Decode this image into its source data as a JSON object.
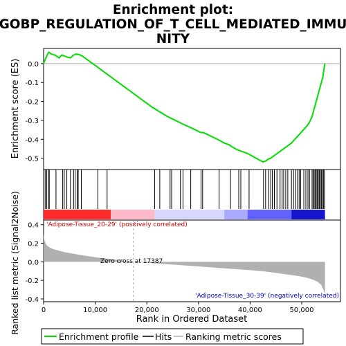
{
  "chart_data": {
    "type": "line",
    "title_lines": [
      "Enrichment plot:",
      "GOBP_REGULATION_OF_T_CELL_MEDIATED_IMMU",
      "NITY"
    ],
    "top_panel": {
      "ylabel": "Enrichment score (ES)",
      "ylim": [
        -0.56,
        0.08
      ],
      "yticks": [
        0.0,
        -0.1,
        -0.2,
        -0.3,
        -0.4,
        -0.5
      ],
      "ytick_labels": [
        "0.0",
        "-0.1",
        "-0.2",
        "-0.3",
        "-0.4",
        "-0.5"
      ],
      "series": [
        {
          "name": "Enrichment profile",
          "color": "#00dd00",
          "x": [
            0,
            300,
            600,
            1000,
            1500,
            2200,
            3000,
            3500,
            4000,
            4500,
            5200,
            5800,
            6300,
            6800,
            7500,
            8500,
            10000,
            12000,
            15000,
            18000,
            21000,
            24000,
            27000,
            29000,
            30500,
            31000,
            32500,
            34000,
            35000,
            36000,
            36500,
            37500,
            38500,
            39500,
            40500,
            41500,
            42500,
            43000,
            43500,
            44000,
            44500,
            45000,
            45500,
            46000,
            46500,
            47000,
            47500,
            48000,
            48500,
            49000,
            49500,
            50000,
            50500,
            51000,
            51500,
            52000,
            52300,
            52600,
            52900,
            53200,
            53500,
            53800,
            54100,
            54300,
            54500
          ],
          "y": [
            0.0,
            0.02,
            0.04,
            0.06,
            0.05,
            0.045,
            0.03,
            0.045,
            0.04,
            0.035,
            0.03,
            0.045,
            0.05,
            0.048,
            0.04,
            0.02,
            -0.01,
            -0.05,
            -0.11,
            -0.17,
            -0.23,
            -0.28,
            -0.32,
            -0.345,
            -0.365,
            -0.365,
            -0.385,
            -0.405,
            -0.42,
            -0.43,
            -0.44,
            -0.455,
            -0.465,
            -0.475,
            -0.49,
            -0.505,
            -0.52,
            -0.515,
            -0.505,
            -0.5,
            -0.49,
            -0.48,
            -0.47,
            -0.46,
            -0.45,
            -0.44,
            -0.43,
            -0.42,
            -0.405,
            -0.39,
            -0.375,
            -0.36,
            -0.345,
            -0.33,
            -0.31,
            -0.28,
            -0.25,
            -0.22,
            -0.19,
            -0.16,
            -0.13,
            -0.1,
            -0.07,
            -0.03,
            0.0
          ]
        }
      ]
    },
    "hits": {
      "name": "Hits",
      "positions": [
        300,
        600,
        900,
        1100,
        2400,
        3700,
        4000,
        4500,
        5200,
        5800,
        6100,
        6500,
        6700,
        7300,
        10500,
        12300,
        21500,
        22500,
        24500,
        24800,
        26500,
        27000,
        28500,
        30500,
        30800,
        34000,
        36200,
        37800,
        38200,
        39800,
        42600,
        43000,
        43600,
        44000,
        44300,
        44700,
        45200,
        45800,
        46200,
        46500,
        46900,
        47300,
        48000,
        48400,
        48800,
        49200,
        49500,
        49800,
        50400,
        50800,
        51200,
        51500,
        52000,
        52200,
        52400,
        52600,
        52800,
        53000,
        53200,
        53400,
        53600,
        53800,
        54000,
        54200,
        54400
      ]
    },
    "bottom_panel": {
      "name": "Ranking metric scores",
      "ylabel": "Ranked list metric (Signal2Noise)",
      "ylim": [
        -0.43,
        0.45
      ],
      "yticks": [
        0.4,
        0.2,
        0.0,
        -0.2,
        -0.4
      ],
      "ytick_labels": [
        "0.4",
        "0.2",
        "0.0",
        "-0.2",
        "-0.4"
      ],
      "metric_curve": {
        "x": [
          0,
          100,
          300,
          600,
          1000,
          1500,
          2000,
          3000,
          4000,
          5000,
          6000,
          7000,
          8000,
          9000,
          10000,
          11000,
          12000,
          13000,
          14000,
          15000,
          16000,
          17387,
          20000,
          25000,
          30000,
          35000,
          40000,
          43000,
          45000,
          47000,
          49000,
          50500,
          51500,
          52500,
          53200,
          53800,
          54200,
          54500
        ],
        "y": [
          0.3,
          0.25,
          0.21,
          0.18,
          0.16,
          0.145,
          0.135,
          0.12,
          0.105,
          0.095,
          0.085,
          0.075,
          0.066,
          0.058,
          0.05,
          0.043,
          0.036,
          0.03,
          0.022,
          0.015,
          0.008,
          0.0,
          -0.01,
          -0.03,
          -0.05,
          -0.07,
          -0.09,
          -0.105,
          -0.12,
          -0.135,
          -0.15,
          -0.165,
          -0.18,
          -0.2,
          -0.22,
          -0.25,
          -0.3,
          -0.35
        ]
      },
      "annotations": {
        "positive_label": "'Adipose-Tissue_20-29' (positively correlated)",
        "negative_label": "'Adipose-Tissue_30-39' (negatively correlated)",
        "zero_cross_label": "Zero cross at 17387",
        "zero_cross": 17387
      }
    },
    "xlabel": "Rank in Ordered Dataset",
    "xlim": [
      0,
      57500
    ],
    "xticks": [
      0,
      10000,
      20000,
      30000,
      40000,
      50000
    ],
    "xtick_labels": [
      "0",
      "10,000",
      "20,000",
      "30,000",
      "40,000",
      "50,000"
    ],
    "xmax_rank": 54500,
    "legend": {
      "placement": "bottom",
      "entries": [
        "Enrichment profile",
        "Hits",
        "Ranking metric scores"
      ]
    },
    "colors": {
      "profile": "#00dd00",
      "hits": "#000000",
      "metric_fill": "#b0b0b0",
      "positive_text": "#dd0000",
      "negative_text": "#0000cc",
      "zero_line": "#aaaaaa"
    },
    "color_bar": {
      "segments": [
        {
          "from": 0,
          "to": 13000,
          "color": "#ff2a2a"
        },
        {
          "from": 13000,
          "to": 21500,
          "color": "#ffb8c8"
        },
        {
          "from": 21500,
          "to": 35000,
          "color": "#d8d8ff"
        },
        {
          "from": 35000,
          "to": 39500,
          "color": "#a9a9ff"
        },
        {
          "from": 39500,
          "to": 48000,
          "color": "#6262ff"
        },
        {
          "from": 48000,
          "to": 54500,
          "color": "#1515cc"
        }
      ]
    }
  }
}
